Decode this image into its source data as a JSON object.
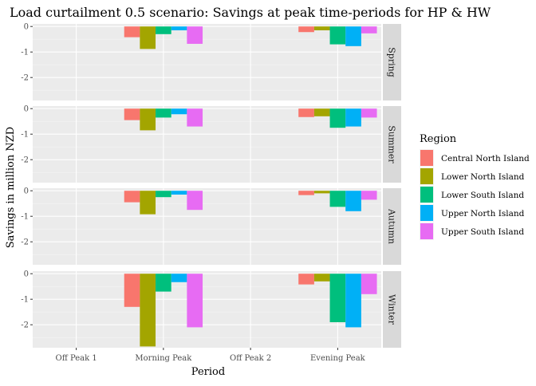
{
  "chart_data": {
    "type": "bar",
    "title": "Load curtailment 0.5 scenario: Savings at peak time-periods for HP & HW",
    "xlabel": "Period",
    "ylabel": "Savings in million NZD",
    "categories": [
      "Off Peak 1",
      "Morning Peak",
      "Off Peak 2",
      "Evening Peak"
    ],
    "ylim": [
      -2.9,
      0.1
    ],
    "yticks": [
      0,
      -1,
      -2
    ],
    "ytick_labels": [
      "0",
      "-1",
      "-2"
    ],
    "legend_title": "Region",
    "legend_position": "right",
    "series_names": [
      "Central North Island",
      "Lower North Island",
      "Lower South Island",
      "Upper North Island",
      "Upper South Island"
    ],
    "colors": [
      "#F8766D",
      "#A3A500",
      "#00BF7D",
      "#00B0F6",
      "#E76BF3"
    ],
    "grid": true,
    "facets": [
      {
        "name": "Spring",
        "series": [
          {
            "name": "Central North Island",
            "values": [
              0,
              -0.42,
              0,
              -0.22
            ]
          },
          {
            "name": "Lower North Island",
            "values": [
              0,
              -0.88,
              0,
              -0.15
            ]
          },
          {
            "name": "Lower South Island",
            "values": [
              0,
              -0.3,
              0,
              -0.7
            ]
          },
          {
            "name": "Upper North Island",
            "values": [
              0,
              -0.15,
              0,
              -0.77
            ]
          },
          {
            "name": "Upper South Island",
            "values": [
              0,
              -0.68,
              0,
              -0.27
            ]
          }
        ]
      },
      {
        "name": "Summer",
        "series": [
          {
            "name": "Central North Island",
            "values": [
              0,
              -0.45,
              0,
              -0.33
            ]
          },
          {
            "name": "Lower North Island",
            "values": [
              0,
              -0.85,
              0,
              -0.3
            ]
          },
          {
            "name": "Lower South Island",
            "values": [
              0,
              -0.35,
              0,
              -0.75
            ]
          },
          {
            "name": "Upper North Island",
            "values": [
              0,
              -0.22,
              0,
              -0.7
            ]
          },
          {
            "name": "Upper South Island",
            "values": [
              0,
              -0.7,
              0,
              -0.35
            ]
          }
        ]
      },
      {
        "name": "Autumn",
        "series": [
          {
            "name": "Central North Island",
            "values": [
              0,
              -0.45,
              0,
              -0.17
            ]
          },
          {
            "name": "Lower North Island",
            "values": [
              0,
              -0.92,
              0,
              -0.1
            ]
          },
          {
            "name": "Lower South Island",
            "values": [
              0,
              -0.25,
              0,
              -0.63
            ]
          },
          {
            "name": "Upper North Island",
            "values": [
              0,
              -0.15,
              0,
              -0.8
            ]
          },
          {
            "name": "Upper South Island",
            "values": [
              0,
              -0.75,
              0,
              -0.35
            ]
          }
        ]
      },
      {
        "name": "Winter",
        "series": [
          {
            "name": "Central North Island",
            "values": [
              0,
              -1.3,
              0,
              -0.42
            ]
          },
          {
            "name": "Lower North Island",
            "values": [
              0,
              -2.85,
              0,
              -0.3
            ]
          },
          {
            "name": "Lower South Island",
            "values": [
              0,
              -0.7,
              0,
              -1.9
            ]
          },
          {
            "name": "Upper North Island",
            "values": [
              0,
              -0.33,
              0,
              -2.1
            ]
          },
          {
            "name": "Upper South Island",
            "values": [
              0,
              -2.1,
              0,
              -0.8
            ]
          }
        ]
      }
    ]
  }
}
